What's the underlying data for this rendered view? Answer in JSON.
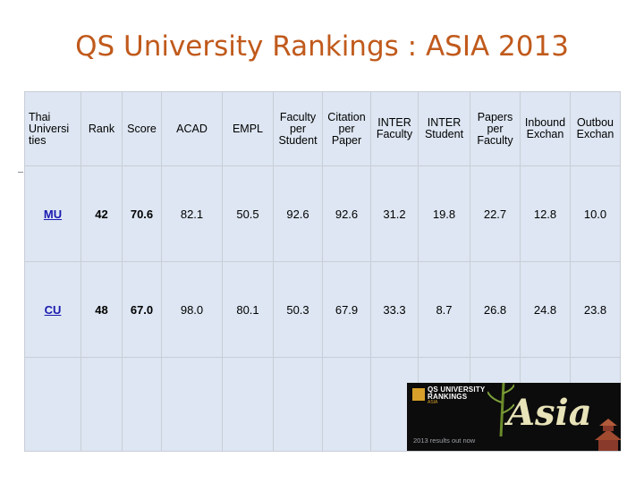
{
  "title": "QS University Rankings : ASIA 2013",
  "table": {
    "headers": [
      [
        "Thai",
        "Universi",
        "ties"
      ],
      [
        "Rank"
      ],
      [
        "Score"
      ],
      [
        "ACAD"
      ],
      [
        "EMPL"
      ],
      [
        "Faculty",
        "per",
        "Student"
      ],
      [
        "Citation",
        "per",
        "Paper"
      ],
      [
        "INTER",
        "Faculty"
      ],
      [
        "INTER",
        "Student"
      ],
      [
        "Papers",
        "per",
        "Faculty"
      ],
      [
        "Inbound",
        "Exchan"
      ],
      [
        "Outbou",
        "Exchan"
      ]
    ],
    "rows": [
      [
        "MU",
        "42",
        "70.6",
        "82.1",
        "50.5",
        "92.6",
        "92.6",
        "31.2",
        "19.8",
        "22.7",
        "12.8",
        "10.0"
      ],
      [
        "CU",
        "48",
        "67.0",
        "98.0",
        "80.1",
        "50.3",
        "67.9",
        "33.3",
        "8.7",
        "26.8",
        "24.8",
        "23.8"
      ]
    ]
  },
  "banner": {
    "logo_line1": "QS UNIVERSITY",
    "logo_line2": "RANKINGS",
    "logo_sub": "ASIA",
    "script_word": "Asia",
    "tagline": "2013 results out now"
  }
}
